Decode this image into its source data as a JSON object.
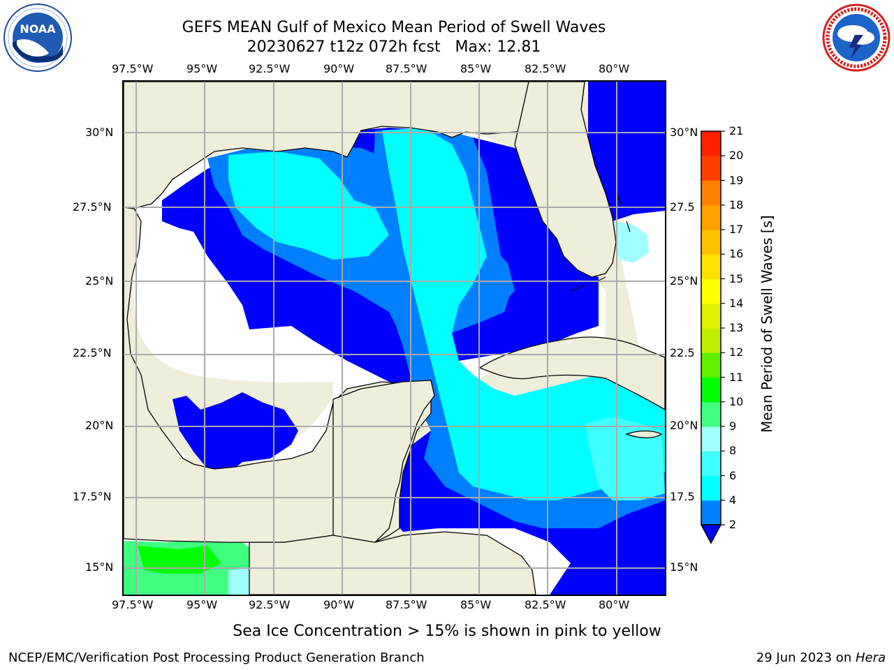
{
  "header": {
    "title_line1": "GEFS MEAN Gulf of Mexico Mean Period of Swell Waves",
    "title_line2": "20230627 t12z 072h fcst   Max: 12.81"
  },
  "logos": {
    "left": {
      "name": "NOAA",
      "ring_text": "NATIONAL OCEANIC AND ATMOSPHERIC ADMINISTRATION · U.S. DEPARTMENT OF COMMERCE"
    },
    "right": {
      "name": "NATIONAL WEATHER SERVICE"
    }
  },
  "map": {
    "lon_labels": [
      "97.5°W",
      "95°W",
      "92.5°W",
      "90°W",
      "87.5°W",
      "85°W",
      "82.5°W",
      "80°W"
    ],
    "lat_labels_left": [
      "30°N",
      "27.5°N",
      "25°N",
      "22.5°N",
      "20°N",
      "17.5°N",
      "15°N"
    ],
    "lat_labels_right": [
      "30°N",
      "27.5",
      "25°N",
      "22.5",
      "20°N",
      "17.5",
      "15°N"
    ],
    "colors": {
      "land": "#efeedb",
      "ocean_below_2": "#ffffff",
      "grid": "#aaaaaa"
    }
  },
  "colorbar": {
    "label": "Mean Period of Swell Waves [s]",
    "ticks": [
      "2",
      "4",
      "6",
      "8",
      "9",
      "10",
      "11",
      "12",
      "13",
      "14",
      "15",
      "16",
      "17",
      "18",
      "19",
      "20",
      "21"
    ],
    "colors": [
      "#0000ff",
      "#0080ff",
      "#00ffff",
      "#40ffff",
      "#a0ffff",
      "#40ff80",
      "#00ff00",
      "#60f000",
      "#c0f000",
      "#e0f000",
      "#ffff00",
      "#ffe000",
      "#ffc000",
      "#ffa000",
      "#ff8000",
      "#ff4000",
      "#ff2000",
      "#ff0000"
    ],
    "extend": "min"
  },
  "footer": {
    "note": "Sea Ice Concentration > 15% is shown in pink to yellow",
    "credit": "NCEP/EMC/Verification Post Processing Product Generation Branch",
    "date": "29 Jun 2023 on ",
    "machine": "Hera"
  }
}
